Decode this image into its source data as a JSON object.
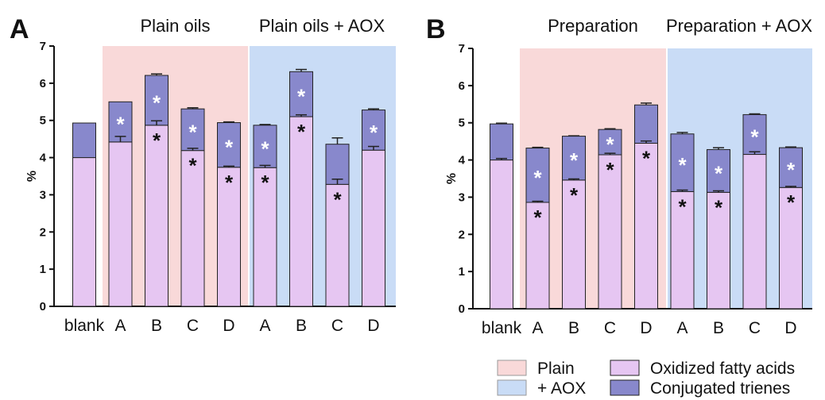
{
  "legend": {
    "plain_label": "Plain",
    "aox_label": "+ AOX",
    "ofa_label": "Oxidized fatty acids",
    "ct_label": "Conjugated trienes"
  },
  "colors": {
    "plain_bg": "#f9d9d9",
    "aox_bg": "#c9dcf6",
    "ofa": "#e6c6f2",
    "ct": "#8888cc",
    "star_on_ofa": "#111111",
    "star_on_ct": "#ffffff"
  },
  "chart_data": [
    {
      "type": "bar",
      "stacked": true,
      "panel": "A",
      "group_labels": [
        "Plain oils",
        "Plain oils + AOX"
      ],
      "categories": [
        "blank",
        "A",
        "B",
        "C",
        "D",
        "A",
        "B",
        "C",
        "D"
      ],
      "ylabel": "%",
      "ylim": [
        0,
        7
      ],
      "yticks": [
        0,
        1,
        2,
        3,
        4,
        5,
        6,
        7
      ],
      "series": [
        {
          "name": "Oxidized fatty acids",
          "values": [
            4.0,
            4.42,
            4.87,
            4.19,
            3.74,
            3.73,
            5.1,
            3.28,
            4.2
          ],
          "errors": [
            0,
            0.15,
            0.12,
            0.06,
            0.03,
            0.06,
            0.05,
            0.14,
            0.1
          ],
          "stars": [
            false,
            false,
            true,
            true,
            true,
            true,
            true,
            true,
            false
          ]
        },
        {
          "name": "Conjugated trienes",
          "values": [
            0.93,
            1.08,
            1.34,
            1.12,
            1.2,
            1.14,
            1.21,
            1.08,
            1.08
          ],
          "errors": [
            0,
            0,
            0.04,
            0.03,
            0.02,
            0.02,
            0.06,
            0.17,
            0.03
          ],
          "stars": [
            false,
            true,
            true,
            true,
            true,
            true,
            true,
            false,
            true
          ]
        }
      ]
    },
    {
      "type": "bar",
      "stacked": true,
      "panel": "B",
      "group_labels": [
        "Preparation",
        "Preparation + AOX"
      ],
      "categories": [
        "blank",
        "A",
        "B",
        "C",
        "D",
        "A",
        "B",
        "C",
        "D"
      ],
      "ylabel": "%",
      "ylim": [
        0,
        7
      ],
      "yticks": [
        0,
        1,
        2,
        3,
        4,
        5,
        6,
        7
      ],
      "series": [
        {
          "name": "Oxidized fatty acids",
          "values": [
            4.0,
            2.86,
            3.46,
            4.14,
            4.45,
            3.15,
            3.13,
            4.15,
            3.26
          ],
          "errors": [
            0.04,
            0.03,
            0.03,
            0.04,
            0.06,
            0.04,
            0.04,
            0.07,
            0.03
          ],
          "stars": [
            false,
            true,
            true,
            true,
            true,
            true,
            true,
            false,
            true
          ]
        },
        {
          "name": "Conjugated trienes",
          "values": [
            0.97,
            1.46,
            1.18,
            0.68,
            1.03,
            1.55,
            1.15,
            1.07,
            1.07
          ],
          "errors": [
            0.02,
            0.02,
            0.01,
            0.02,
            0.05,
            0.04,
            0.05,
            0.02,
            0.02
          ],
          "stars": [
            false,
            true,
            true,
            true,
            false,
            true,
            true,
            true,
            true
          ]
        }
      ]
    }
  ]
}
